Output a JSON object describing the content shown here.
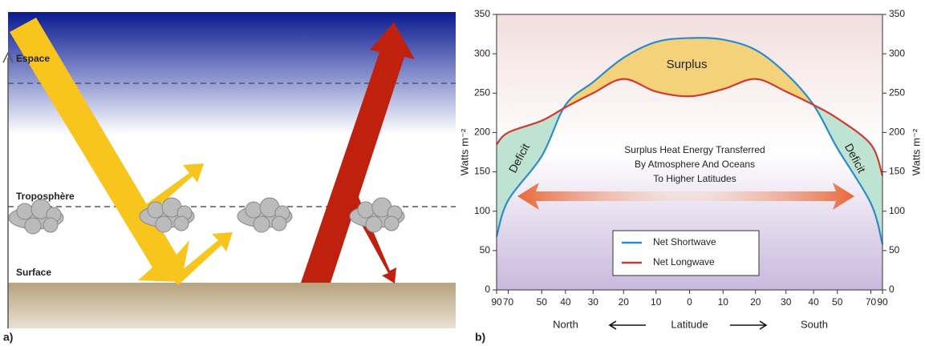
{
  "diagram": {
    "space": "Espace",
    "troposphere": "Troposphère",
    "surface": "Surface",
    "panel_label": "a)"
  },
  "chart_data": {
    "type": "line",
    "panel_label": "b)",
    "x": [
      -90,
      -70,
      -50,
      -40,
      -30,
      -20,
      -10,
      0,
      10,
      20,
      30,
      40,
      50,
      70,
      90
    ],
    "xscale": "sine",
    "xlim": [
      -90,
      90
    ],
    "xticks": [
      {
        "value": -90,
        "label": "90"
      },
      {
        "value": -70,
        "label": "70"
      },
      {
        "value": -50,
        "label": "50"
      },
      {
        "value": -40,
        "label": "40"
      },
      {
        "value": -30,
        "label": "30"
      },
      {
        "value": -20,
        "label": "20"
      },
      {
        "value": -10,
        "label": "10"
      },
      0,
      10,
      20,
      30,
      40,
      50,
      70,
      90
    ],
    "xlabel": "Latitude",
    "x_direction_labels": [
      "North",
      "South"
    ],
    "ylabel": "Watts m⁻²",
    "ylim": [
      0,
      350
    ],
    "yticks": [
      0,
      50,
      100,
      150,
      200,
      250,
      300,
      350
    ],
    "series": [
      {
        "name": "Net Shortwave",
        "color": "#2a8ccf",
        "values": [
          68,
          114,
          170,
          235,
          264,
          295,
          315,
          320,
          318,
          305,
          275,
          235,
          180,
          110,
          58
        ]
      },
      {
        "name": "Net Longwave",
        "color": "#d23a2e",
        "values": [
          185,
          200,
          215,
          232,
          250,
          268,
          252,
          246,
          255,
          268,
          252,
          235,
          218,
          185,
          145
        ]
      }
    ],
    "surplus_color": "#f5d27a",
    "deficit_color": "#bfe3d2",
    "annotations": [
      "Surplus",
      "Deficit",
      "Deficit",
      "Surplus Heat Energy Transferred",
      "By Atmosphere And Oceans",
      "To Higher Latitudes"
    ],
    "legend": "lower center"
  }
}
